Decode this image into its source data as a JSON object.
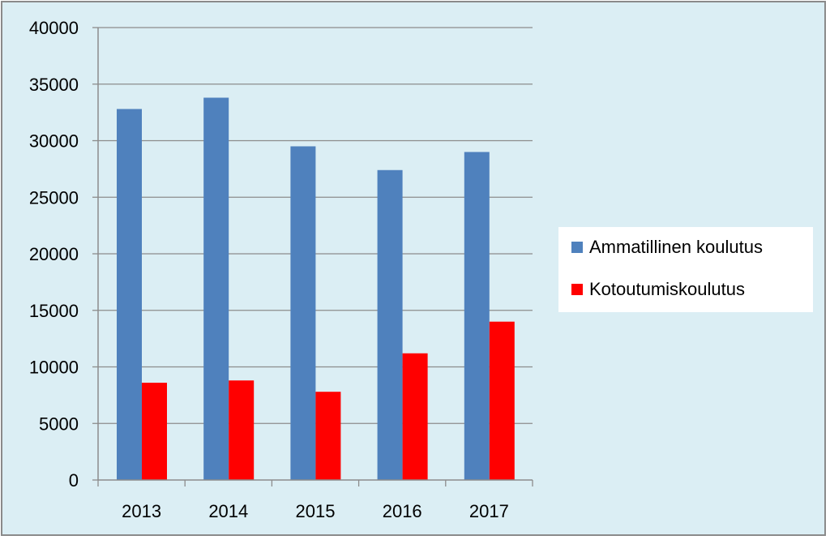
{
  "chart_data": {
    "type": "bar",
    "categories": [
      "2013",
      "2014",
      "2015",
      "2016",
      "2017"
    ],
    "series": [
      {
        "name": "Ammatillinen koulutus",
        "color": "#4f81bd",
        "values": [
          32800,
          33800,
          29500,
          27400,
          29000
        ]
      },
      {
        "name": "Kotoutumiskoulutus",
        "color": "#ff0000",
        "values": [
          8600,
          8800,
          7800,
          11200,
          14000
        ]
      }
    ],
    "yticks": [
      "0",
      "5000",
      "10000",
      "15000",
      "20000",
      "25000",
      "30000",
      "35000",
      "40000"
    ],
    "ylim": [
      0,
      40000
    ],
    "grid": true,
    "legend_position": "right",
    "background_color": "#dbeef4"
  }
}
